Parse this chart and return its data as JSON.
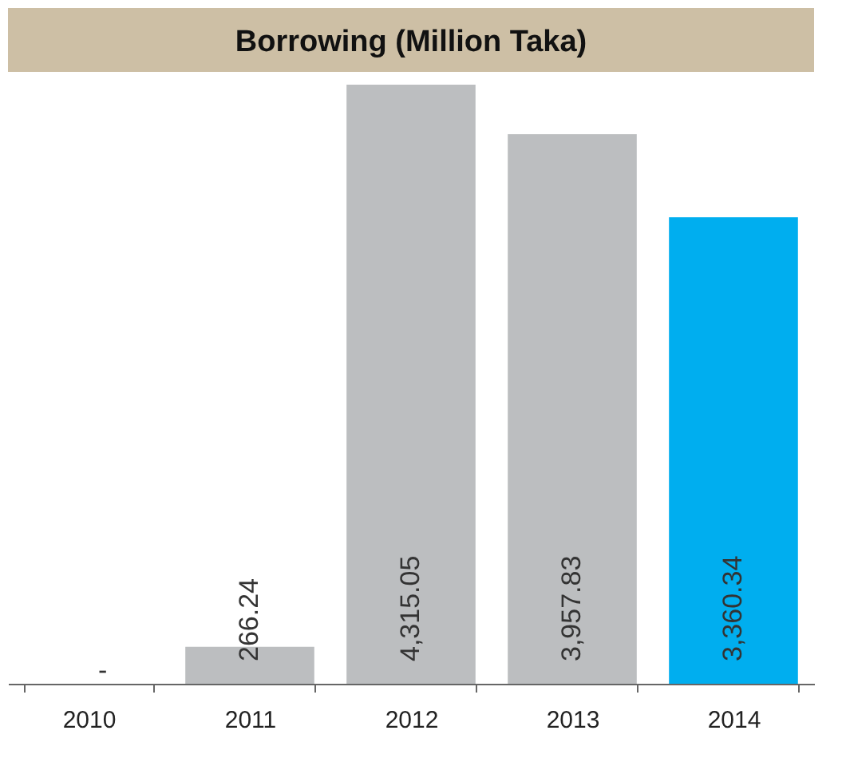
{
  "chart_data": {
    "type": "bar",
    "title": "Borrowing (Million Taka)",
    "categories": [
      "2010",
      "2011",
      "2012",
      "2013",
      "2014"
    ],
    "values": [
      null,
      266.24,
      4315.05,
      3957.83,
      3360.34
    ],
    "colors": [
      "#bcbec0",
      "#bcbec0",
      "#bcbec0",
      "#bcbec0",
      "#00aeef"
    ],
    "value_labels": [
      "-",
      "266.24",
      "4,315.05",
      "3,957.83",
      "3,360.34"
    ],
    "grid": false,
    "legend": false
  }
}
